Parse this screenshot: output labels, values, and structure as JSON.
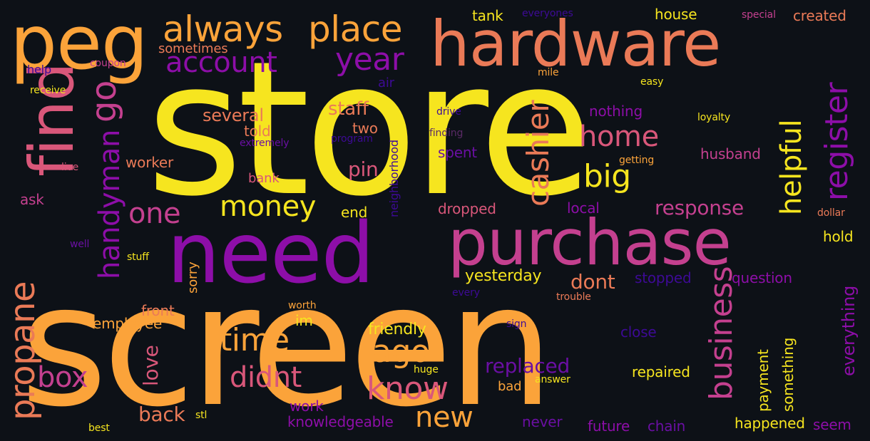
{
  "palette": {
    "background": "#0d1117",
    "yellow": "#f6e51f",
    "orange": "#fba33a",
    "salmon": "#ea7a57",
    "pink": "#d9577a",
    "magenta": "#c4408f",
    "purple": "#8d0ea8",
    "violet": "#6a0fa3",
    "indigo": "#3d0a96",
    "dim": "#5a2a66"
  },
  "words": {
    "store": "store",
    "screen": "screen",
    "need": "need",
    "purchase": "purchase",
    "hardware": "hardware",
    "peg": "peg",
    "find": "find",
    "always": "always",
    "place": "place",
    "account": "account",
    "year": "year",
    "go": "go",
    "handyman": "handyman",
    "one": "one",
    "propane": "propane",
    "box": "box",
    "back": "back",
    "love": "love",
    "front": "front",
    "employee": "employee",
    "sorry": "sorry",
    "stuff": "stuff",
    "several": "several",
    "told": "told",
    "extremely": "extremely",
    "worker": "worker",
    "money": "money",
    "time": "time",
    "didnt": "didnt",
    "ago": "ago",
    "know": "know",
    "new": "new",
    "staff": "staff",
    "two": "two",
    "pin": "pin",
    "end": "end",
    "neighborhood": "neighborhood",
    "cashier": "cashier",
    "home": "home",
    "big": "big",
    "helpful": "helpful",
    "register": "register",
    "response": "response",
    "business": "business",
    "dont": "dont",
    "yesterday": "yesterday",
    "replaced": "replaced",
    "friendly": "friendly",
    "im": "im",
    "worth": "worth",
    "work": "work",
    "knowledgeable": "knowledgeable",
    "stl": "stl",
    "huge": "huge",
    "bad": "bad",
    "answer": "answer",
    "never": "never",
    "future": "future",
    "chain": "chain",
    "happened": "happened",
    "seem": "seem",
    "payment": "payment",
    "something": "something",
    "everything": "everything",
    "repaired": "repaired",
    "close": "close",
    "sign": "sign",
    "trouble": "trouble",
    "every": "every",
    "stopped": "stopped",
    "question": "question",
    "hold": "hold",
    "dollar": "dollar",
    "local": "local",
    "dropped": "dropped",
    "spent": "spent",
    "getting": "getting",
    "husband": "husband",
    "loyalty": "loyalty",
    "nothing": "nothing",
    "easy": "easy",
    "mile": "mile",
    "drive": "drive",
    "finding": "finding",
    "program": "program",
    "air": "air",
    "tank": "tank",
    "everyones": "everyones",
    "house": "house",
    "special": "special",
    "created": "created",
    "sometimes": "sometimes",
    "coupon": "coupon",
    "help": "help",
    "receive": "receive",
    "live": "live",
    "ask": "ask",
    "well": "well",
    "bank": "bank",
    "best": "best"
  }
}
